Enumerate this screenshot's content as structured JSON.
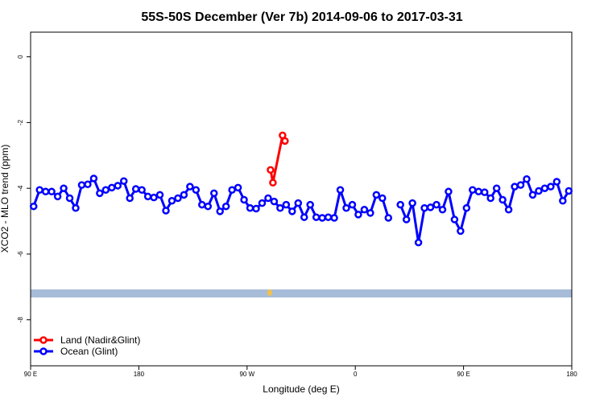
{
  "chart_data": {
    "type": "line",
    "title": "55S-50S December (Ver 7b)   2014-09-06 to 2017-03-31",
    "x_label": "Longitude (deg E)",
    "y_label": "XCO2 - MLO trend (ppm)",
    "xlim": [
      90,
      540
    ],
    "xticks": [
      {
        "value": 90,
        "label": "90 E"
      },
      {
        "value": 180,
        "label": "180"
      },
      {
        "value": 270,
        "label": "90 W"
      },
      {
        "value": 360,
        "label": "0"
      },
      {
        "value": 450,
        "label": "90 E"
      },
      {
        "value": 540,
        "label": "180"
      }
    ],
    "ylim": [
      -9.4,
      0.75
    ],
    "yticks": [
      0,
      -2,
      -4,
      -6,
      -8
    ],
    "legend": "bottomleft",
    "series": [
      {
        "name": "Land (Nadir&Glint)",
        "color": "#ff0000",
        "x": [
          289.5,
          291.5,
          299.5,
          301.5
        ],
        "values": [
          -3.44,
          -3.83,
          -2.39,
          -2.56
        ]
      },
      {
        "name": "Ocean (Glint)",
        "color": "#0000ff",
        "x": [
          92.5,
          97.5,
          102.5,
          107.5,
          112.5,
          117.5,
          122.5,
          127.5,
          132.5,
          137.5,
          142.5,
          147.5,
          152.5,
          157.5,
          162.5,
          167.5,
          172.5,
          177.5,
          182.5,
          187.5,
          192.5,
          197.5,
          202.5,
          207.5,
          212.5,
          217.5,
          222.5,
          227.5,
          232.5,
          237.5,
          242.5,
          247.5,
          252.5,
          257.5,
          262.5,
          267.5,
          272.5,
          277.5,
          282.5,
          287.5,
          292.5,
          297.5,
          302.5,
          307.5,
          312.5,
          317.5,
          322.5,
          327.5,
          332.5,
          337.5,
          342.5,
          347.5,
          352.5,
          357.5,
          362.5,
          367.5,
          372.5,
          377.5,
          382.5,
          387.5,
          392.5,
          397.5,
          402.5,
          407.5,
          412.5,
          417.5,
          422.5,
          427.5,
          432.5,
          437.5,
          442.5,
          447.5,
          452.5,
          457.5,
          462.5,
          467.5,
          472.5,
          477.5,
          482.5,
          487.5,
          492.5,
          497.5,
          502.5,
          507.5,
          512.5,
          517.5,
          522.5,
          527.5,
          532.5,
          537.5
        ],
        "values": [
          -4.55,
          -4.05,
          -4.1,
          -4.1,
          -4.25,
          -4.0,
          -4.3,
          -4.6,
          -3.9,
          -3.88,
          -3.7,
          -4.15,
          -4.05,
          -3.98,
          -3.92,
          -3.78,
          -4.3,
          -4.02,
          -4.05,
          -4.25,
          -4.28,
          -4.2,
          -4.68,
          -4.38,
          -4.3,
          -4.2,
          -3.95,
          -4.05,
          -4.5,
          -4.55,
          -4.15,
          -4.7,
          -4.55,
          -4.05,
          -3.98,
          -4.35,
          -4.6,
          -4.62,
          -4.45,
          -4.3,
          -4.4,
          -4.6,
          -4.5,
          -4.7,
          -4.45,
          -4.88,
          -4.5,
          -4.88,
          -4.9,
          -4.88,
          -4.9,
          -4.05,
          -4.6,
          -4.5,
          -4.8,
          -4.65,
          -4.75,
          -4.2,
          -4.3,
          -4.9,
          null,
          -4.5,
          -4.95,
          -4.45,
          -5.65,
          -4.6,
          -4.58,
          -4.5,
          -4.65,
          -4.1,
          -4.95,
          -5.3,
          -4.6,
          -4.05,
          -4.1,
          -4.12,
          -4.3,
          -4.0,
          -4.35,
          -4.65,
          -3.95,
          -3.9,
          -3.72,
          -4.2,
          -4.08,
          -4.0,
          -3.95,
          -3.8,
          -4.38,
          -4.08
        ]
      }
    ]
  }
}
